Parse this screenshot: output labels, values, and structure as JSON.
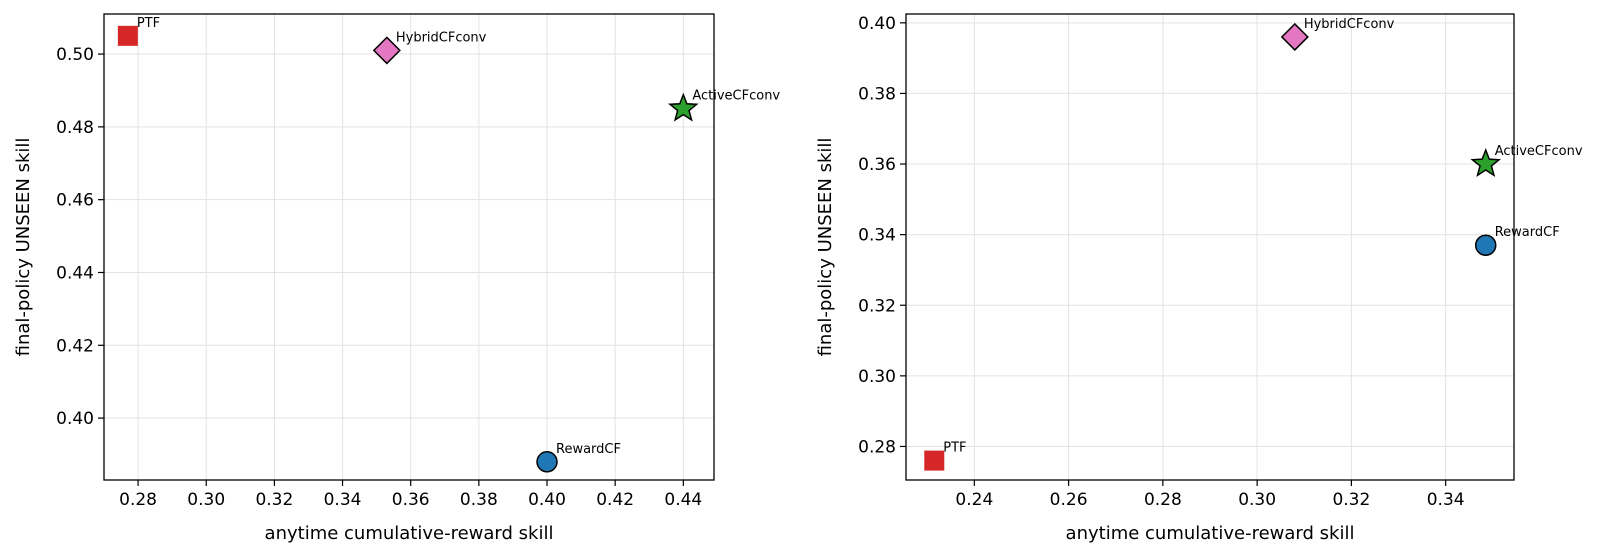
{
  "chart_data": [
    {
      "type": "scatter",
      "xlabel": "anytime cumulative-reward skill",
      "ylabel": "final-policy UNSEEN skill",
      "xlim": [
        0.27,
        0.449
      ],
      "ylim": [
        0.383,
        0.511
      ],
      "xticks": [
        "0.28",
        "0.30",
        "0.32",
        "0.34",
        "0.36",
        "0.38",
        "0.40",
        "0.42",
        "0.44"
      ],
      "yticks": [
        "0.40",
        "0.42",
        "0.44",
        "0.46",
        "0.48",
        "0.50"
      ],
      "grid": true,
      "points": [
        {
          "label": "PTF",
          "x": 0.277,
          "y": 0.505,
          "marker": "square",
          "color": "#d62728"
        },
        {
          "label": "HybridCFconv",
          "x": 0.353,
          "y": 0.501,
          "marker": "diamond",
          "color": "#e377c2"
        },
        {
          "label": "ActiveCFconv",
          "x": 0.44,
          "y": 0.485,
          "marker": "star",
          "color": "#2ca02c"
        },
        {
          "label": "RewardCF",
          "x": 0.4,
          "y": 0.388,
          "marker": "circle",
          "color": "#1f77b4"
        }
      ]
    },
    {
      "type": "scatter",
      "xlabel": "anytime cumulative-reward skill",
      "ylabel": "final-policy UNSEEN skill",
      "xlim": [
        0.2255,
        0.3545
      ],
      "ylim": [
        0.2705,
        0.4025
      ],
      "xticks": [
        "0.24",
        "0.26",
        "0.28",
        "0.30",
        "0.32",
        "0.34"
      ],
      "yticks": [
        "0.28",
        "0.30",
        "0.32",
        "0.34",
        "0.36",
        "0.38",
        "0.40"
      ],
      "grid": true,
      "points": [
        {
          "label": "HybridCFconv",
          "x": 0.308,
          "y": 0.396,
          "marker": "diamond",
          "color": "#e377c2"
        },
        {
          "label": "ActiveCFconv",
          "x": 0.3485,
          "y": 0.36,
          "marker": "star",
          "color": "#2ca02c"
        },
        {
          "label": "RewardCF",
          "x": 0.3485,
          "y": 0.337,
          "marker": "circle",
          "color": "#1f77b4"
        },
        {
          "label": "PTF",
          "x": 0.2315,
          "y": 0.276,
          "marker": "square",
          "color": "#d62728"
        }
      ]
    }
  ]
}
